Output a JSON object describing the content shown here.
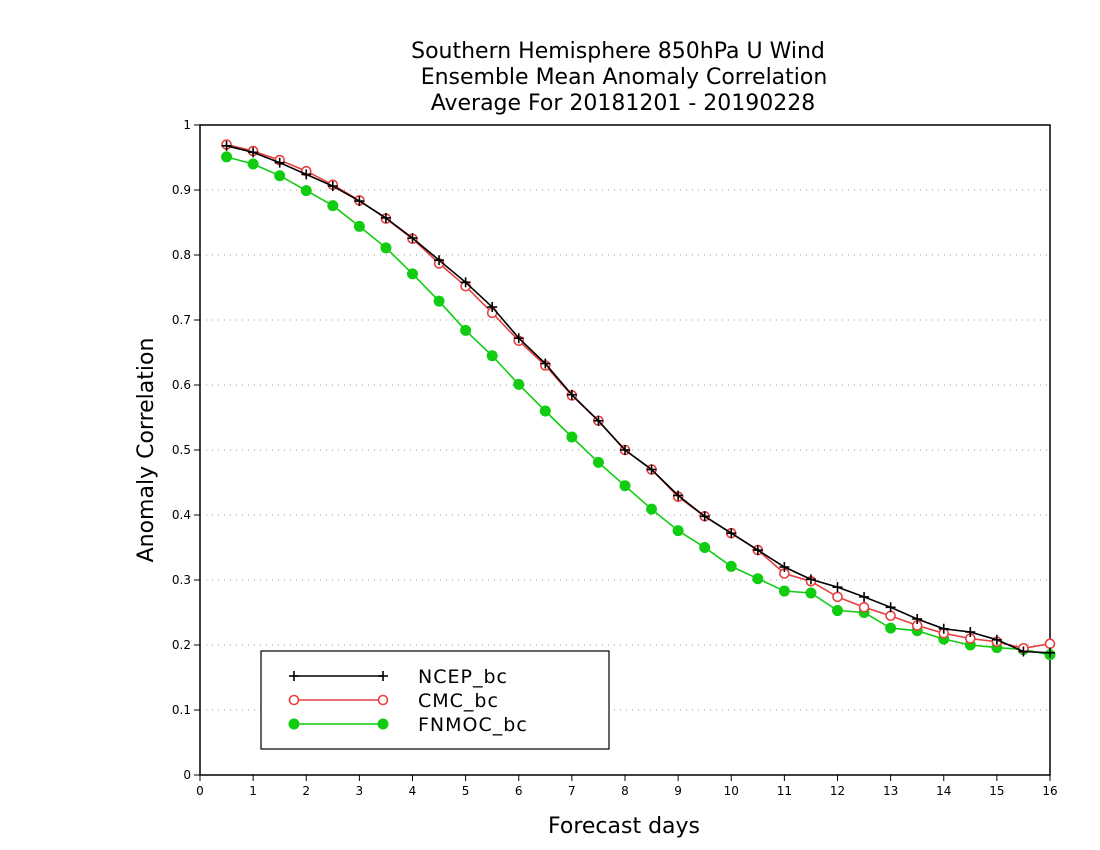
{
  "chart_data": {
    "type": "line",
    "title": [
      "Southern Hemisphere 850hPa U Wind",
      "Ensemble Mean Anomaly Correlation",
      "Average For 20181201 - 20190228"
    ],
    "xlabel": "Forecast days",
    "ylabel": "Anomaly Correlation",
    "xlim": [
      0,
      16
    ],
    "ylim": [
      0,
      1
    ],
    "x_ticks": [
      "0",
      "1",
      "2",
      "3",
      "4",
      "5",
      "6",
      "7",
      "8",
      "9",
      "10",
      "11",
      "12",
      "13",
      "14",
      "15",
      "16"
    ],
    "y_ticks": [
      "0",
      "0.1",
      "0.2",
      "0.3",
      "0.4",
      "0.5",
      "0.6",
      "0.7",
      "0.8",
      "0.9",
      "1"
    ],
    "grid": "horizontal dotted",
    "legend_position": "bottom-left",
    "x": [
      0.5,
      1,
      1.5,
      2,
      2.5,
      3,
      3.5,
      4,
      4.5,
      5,
      5.5,
      6,
      6.5,
      7,
      7.5,
      8,
      8.5,
      9,
      9.5,
      10,
      10.5,
      11,
      11.5,
      12,
      12.5,
      13,
      13.5,
      14,
      14.5,
      15,
      15.5,
      16
    ],
    "series": [
      {
        "name": "NCEP_bc",
        "color": "#000000",
        "marker": "plus",
        "values": [
          0.968,
          0.958,
          0.942,
          0.924,
          0.906,
          0.883,
          0.857,
          0.826,
          0.792,
          0.758,
          0.72,
          0.672,
          0.633,
          0.585,
          0.545,
          0.5,
          0.47,
          0.43,
          0.398,
          0.372,
          0.346,
          0.32,
          0.301,
          0.289,
          0.274,
          0.258,
          0.24,
          0.225,
          0.22,
          0.208,
          0.19,
          0.188
        ]
      },
      {
        "name": "CMC_bc",
        "color": "#e84040",
        "marker": "open-circle",
        "values": [
          0.97,
          0.96,
          0.946,
          0.929,
          0.908,
          0.884,
          0.856,
          0.825,
          0.787,
          0.752,
          0.711,
          0.668,
          0.63,
          0.584,
          0.545,
          0.5,
          0.47,
          0.428,
          0.398,
          0.372,
          0.346,
          0.31,
          0.298,
          0.274,
          0.258,
          0.245,
          0.23,
          0.218,
          0.21,
          0.205,
          0.195,
          0.202
        ]
      },
      {
        "name": "FNMOC_bc",
        "color": "#11cc11",
        "marker": "filled-circle",
        "values": [
          0.951,
          0.94,
          0.922,
          0.899,
          0.876,
          0.844,
          0.811,
          0.771,
          0.729,
          0.684,
          0.645,
          0.601,
          0.56,
          0.52,
          0.481,
          0.445,
          0.409,
          0.376,
          0.35,
          0.321,
          0.302,
          0.283,
          0.28,
          0.253,
          0.25,
          0.226,
          0.222,
          0.209,
          0.2,
          0.196,
          0.193,
          0.185
        ]
      }
    ]
  }
}
